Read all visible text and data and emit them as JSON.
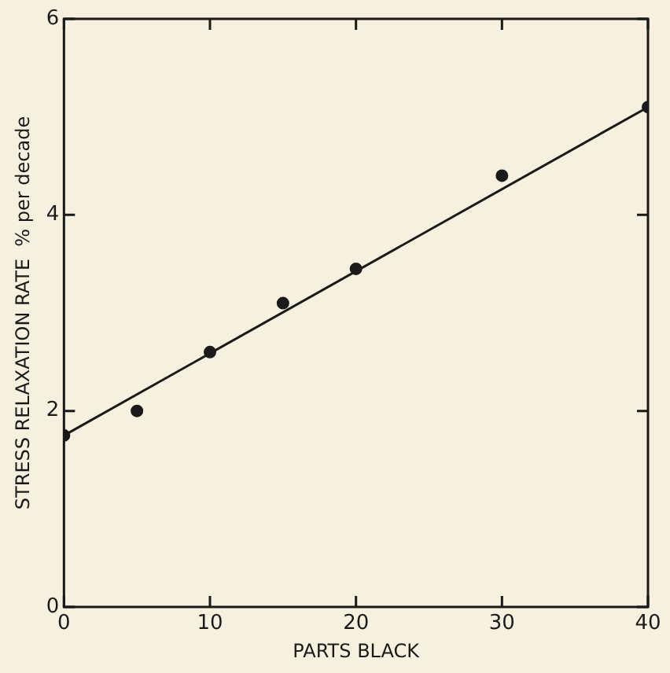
{
  "chart_data": {
    "type": "scatter",
    "xlabel": "PARTS BLACK",
    "ylabel": "STRESS RELAXATION RATE  % per decade",
    "x": [
      0,
      5,
      10,
      15,
      20,
      30,
      40
    ],
    "series": [
      {
        "color": "#1a1a1a",
        "values": [
          1.75,
          2.0,
          2.6,
          3.1,
          3.45,
          4.4,
          5.1
        ]
      },
      {
        "type": "line",
        "color": "#1a1a1a",
        "x": [
          0,
          40
        ],
        "values": [
          1.75,
          5.1
        ],
        "marker": "none"
      }
    ],
    "xlim": [
      0,
      40
    ],
    "xticks": [
      0,
      10,
      20,
      30,
      40
    ],
    "ylim": [
      0,
      6
    ],
    "yticks": [
      0,
      2,
      4,
      6
    ],
    "grid": false,
    "legend": false,
    "marker": "circle"
  }
}
